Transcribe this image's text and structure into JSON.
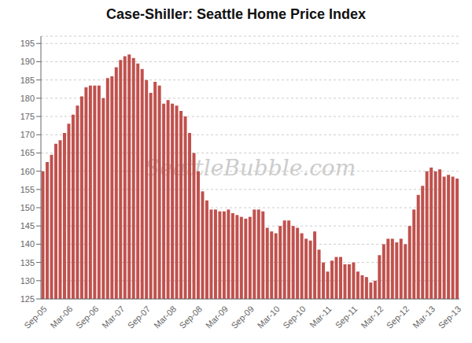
{
  "chart_data": {
    "type": "bar",
    "title": "Case-Shiller: Seattle Home Price Index",
    "categories": [
      "Sep-05",
      null,
      null,
      null,
      null,
      null,
      "Mar-06",
      null,
      null,
      null,
      null,
      null,
      "Sep-06",
      null,
      null,
      null,
      null,
      null,
      "Mar-07",
      null,
      null,
      null,
      null,
      null,
      "Sep-07",
      null,
      null,
      null,
      null,
      null,
      "Mar-08",
      null,
      null,
      null,
      null,
      null,
      "Sep-08",
      null,
      null,
      null,
      null,
      null,
      "Mar-09",
      null,
      null,
      null,
      null,
      null,
      "Sep-09",
      null,
      null,
      null,
      null,
      null,
      "Mar-10",
      null,
      null,
      null,
      null,
      null,
      "Sep-10",
      null,
      null,
      null,
      null,
      null,
      "Mar-11",
      null,
      null,
      null,
      null,
      null,
      "Sep-11",
      null,
      null,
      null,
      null,
      null,
      "Mar-12",
      null,
      null,
      null,
      null,
      null,
      "Sep-12",
      null,
      null,
      null,
      null,
      null,
      "Mar-13",
      null,
      null,
      null,
      null,
      null,
      "Sep-13"
    ],
    "values": [
      160.0,
      162.5,
      164.5,
      167.5,
      168.5,
      170.5,
      173.0,
      175.5,
      178.0,
      180.5,
      183.0,
      183.5,
      183.5,
      183.5,
      180.0,
      185.5,
      186.0,
      188.5,
      190.5,
      191.5,
      192.0,
      191.0,
      189.5,
      188.0,
      185.0,
      181.5,
      184.5,
      183.5,
      178.5,
      179.5,
      178.5,
      178.0,
      176.5,
      175.0,
      170.5,
      165.0,
      160.0,
      154.5,
      152.0,
      149.5,
      149.5,
      149.0,
      149.0,
      149.5,
      148.5,
      148.0,
      147.5,
      147.0,
      147.5,
      149.5,
      149.5,
      149.0,
      144.5,
      143.5,
      143.0,
      145.0,
      146.5,
      146.5,
      145.0,
      144.5,
      143.0,
      141.5,
      141.0,
      143.5,
      138.5,
      135.0,
      132.5,
      135.5,
      136.5,
      136.5,
      134.5,
      134.5,
      135.0,
      132.5,
      131.5,
      131.0,
      129.5,
      130.0,
      137.0,
      140.0,
      141.5,
      141.5,
      140.5,
      141.5,
      140.0,
      145.0,
      149.5,
      153.5,
      156.0,
      160.0,
      161.0,
      160.0,
      160.5,
      158.5,
      159.0,
      158.5,
      158.0
    ],
    "color": "#c0514d",
    "ylim": [
      125,
      197
    ],
    "yticks": [
      125,
      130,
      135,
      140,
      145,
      150,
      155,
      160,
      165,
      170,
      175,
      180,
      185,
      190,
      195
    ],
    "grid": true,
    "annotations": [
      "SeattleBubble.com"
    ]
  }
}
